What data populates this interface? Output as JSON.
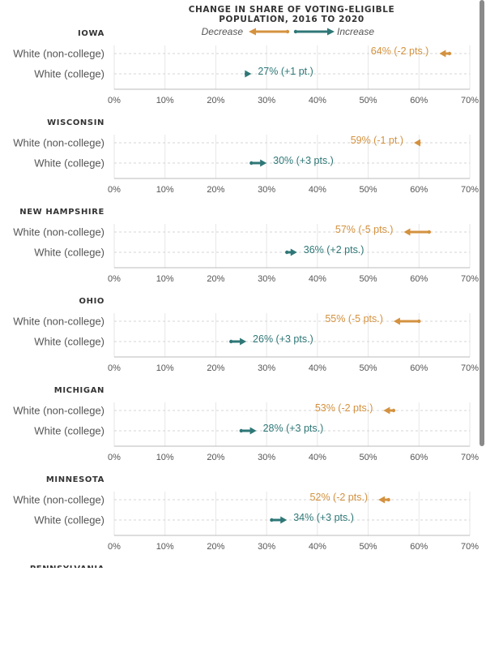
{
  "chart_data": {
    "type": "dot-arrow",
    "title": [
      "CHANGE IN SHARE OF VOTING-ELIGIBLE",
      "POPULATION, 2016 TO 2020"
    ],
    "legend": {
      "decrease": "Decrease",
      "increase": "Increase"
    },
    "colors": {
      "decrease": "#d4923f",
      "increase": "#2f7777",
      "grid": "#d6d6d6",
      "axis": "#bbbbbb"
    },
    "xlim": [
      0,
      70
    ],
    "ticks": [
      0,
      10,
      20,
      30,
      40,
      50,
      60,
      70
    ],
    "tick_labels": [
      "0%",
      "10%",
      "20%",
      "30%",
      "40%",
      "50%",
      "60%",
      "70%"
    ],
    "groups": [
      {
        "name": "IOWA",
        "rows": [
          {
            "label": "White (non-college)",
            "start": 66,
            "end": 64,
            "value_label": "64% (-2 pts.)",
            "direction": "decrease"
          },
          {
            "label": "White (college)",
            "start": 26,
            "end": 27,
            "value_label": "27% (+1 pt.)",
            "direction": "increase"
          }
        ]
      },
      {
        "name": "WISCONSIN",
        "rows": [
          {
            "label": "White (non-college)",
            "start": 60,
            "end": 59,
            "value_label": "59% (-1 pt.)",
            "direction": "decrease"
          },
          {
            "label": "White (college)",
            "start": 27,
            "end": 30,
            "value_label": "30% (+3 pts.)",
            "direction": "increase"
          }
        ]
      },
      {
        "name": "NEW HAMPSHIRE",
        "rows": [
          {
            "label": "White (non-college)",
            "start": 62,
            "end": 57,
            "value_label": "57% (-5 pts.)",
            "direction": "decrease"
          },
          {
            "label": "White (college)",
            "start": 34,
            "end": 36,
            "value_label": "36% (+2 pts.)",
            "direction": "increase"
          }
        ]
      },
      {
        "name": "OHIO",
        "rows": [
          {
            "label": "White (non-college)",
            "start": 60,
            "end": 55,
            "value_label": "55% (-5 pts.)",
            "direction": "decrease"
          },
          {
            "label": "White (college)",
            "start": 23,
            "end": 26,
            "value_label": "26% (+3 pts.)",
            "direction": "increase"
          }
        ]
      },
      {
        "name": "MICHIGAN",
        "rows": [
          {
            "label": "White (non-college)",
            "start": 55,
            "end": 53,
            "value_label": "53% (-2 pts.)",
            "direction": "decrease"
          },
          {
            "label": "White (college)",
            "start": 25,
            "end": 28,
            "value_label": "28% (+3 pts.)",
            "direction": "increase"
          }
        ]
      },
      {
        "name": "MINNESOTA",
        "rows": [
          {
            "label": "White (non-college)",
            "start": 54,
            "end": 52,
            "value_label": "52% (-2 pts.)",
            "direction": "decrease"
          },
          {
            "label": "White (college)",
            "start": 31,
            "end": 34,
            "value_label": "34% (+3 pts.)",
            "direction": "increase"
          }
        ]
      },
      {
        "name": "PENNSYLVANIA",
        "rows": []
      }
    ]
  }
}
